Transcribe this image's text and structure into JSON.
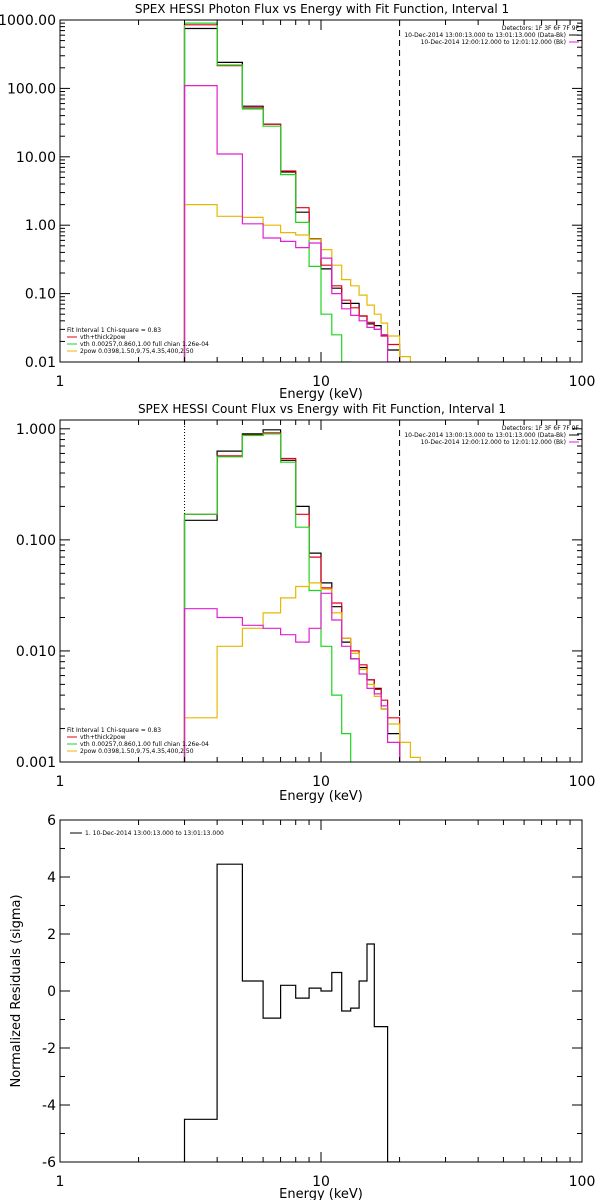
{
  "colors": {
    "background": "#ffffff",
    "axes": "#000000",
    "data": "#000000",
    "vth_thick2pow": "#e0001b",
    "vth": "#1ed41e",
    "2pow": "#e6b800",
    "background_model": "#e020d0",
    "energy_marker": "#000000",
    "low_marker": "#e07800"
  },
  "chart_data": [
    {
      "type": "line",
      "title": "SPEX HESSI Photon Flux vs Energy with Fit Function, Interval 1",
      "xlabel": "Energy (keV)",
      "ylabel": "",
      "x_scale": "log",
      "y_scale": "log",
      "xlim": [
        1,
        100
      ],
      "ylim": [
        0.01,
        1000
      ],
      "x_ticks": [
        1,
        10,
        100
      ],
      "x_tick_labels": [
        "1",
        "10",
        "100"
      ],
      "y_ticks": [
        0.01,
        0.1,
        1,
        10,
        100,
        1000
      ],
      "y_tick_labels": [
        "0.01",
        "0.10",
        "1.00",
        "10.00",
        "100.00",
        "1000.00"
      ],
      "vlines": [
        {
          "x": 3.0,
          "style": "dotted",
          "color": "#e07800"
        },
        {
          "x": 20.0,
          "style": "dashed",
          "color": "#000000"
        }
      ],
      "legend_top_right": {
        "detectors": "Detectors: 1F 3F 6F 7F 9F",
        "entries": [
          {
            "label": "10-Dec-2014 13:00:13.000 to 13:01:13.000 (Data-Bk)",
            "color": "#000000"
          },
          {
            "label": "10-Dec-2014 12:00:12.000 to 12:01:12.000 (Bk)",
            "color": "#e020d0"
          }
        ]
      },
      "legend_bottom_left": {
        "header": "Fit Interval 1   Chi-square = 0.83",
        "entries": [
          {
            "label": "vth+thick2pow",
            "color": "#e0001b"
          },
          {
            "label": "vth 0.00257,0.860,1.00  full chian 1.26e-04",
            "color": "#1ed41e"
          },
          {
            "label": "2pow 0.0398,1.50,9.75,4.35,400,2.50",
            "color": "#e6b800"
          }
        ]
      },
      "series": [
        {
          "key": "data",
          "color": "#000000",
          "edges": [
            3,
            4,
            5,
            6,
            7,
            8,
            9,
            10,
            11,
            12,
            13,
            14,
            15,
            16,
            17,
            18,
            20
          ],
          "values": [
            750,
            240,
            55,
            30,
            6.0,
            1.55,
            0.63,
            0.23,
            0.12,
            0.072,
            0.072,
            0.047,
            0.036,
            0.034,
            0.025,
            0.015
          ]
        },
        {
          "key": "model_total",
          "color": "#e0001b",
          "edges": [
            3,
            4,
            5,
            6,
            7,
            8,
            9,
            10,
            11,
            12,
            13,
            14,
            15,
            16,
            17,
            18,
            20
          ],
          "values": [
            850,
            215,
            52,
            30,
            6.2,
            1.8,
            0.62,
            0.26,
            0.13,
            0.08,
            0.062,
            0.047,
            0.038,
            0.03,
            0.024,
            0.018
          ]
        },
        {
          "key": "vth",
          "color": "#1ed41e",
          "edges": [
            3,
            4,
            5,
            6,
            7,
            8,
            9,
            10,
            11,
            12,
            13
          ],
          "values": [
            900,
            220,
            50,
            28,
            5.5,
            1.1,
            0.25,
            0.05,
            0.025,
            0.01
          ]
        },
        {
          "key": "2pow",
          "color": "#e6b800",
          "edges": [
            3,
            4,
            5,
            6,
            7,
            8,
            9,
            10,
            11,
            12,
            13,
            14,
            15,
            16,
            17,
            18,
            20,
            22
          ],
          "values": [
            2.0,
            1.35,
            1.3,
            1.0,
            0.78,
            0.72,
            0.62,
            0.44,
            0.26,
            0.16,
            0.13,
            0.095,
            0.068,
            0.05,
            0.037,
            0.024,
            0.012
          ]
        },
        {
          "key": "background",
          "color": "#e020d0",
          "edges": [
            3,
            4,
            5,
            6,
            7,
            8,
            9,
            10,
            11,
            12,
            13,
            14,
            15,
            16,
            17,
            18,
            20
          ],
          "values": [
            110,
            11,
            1.05,
            0.65,
            0.58,
            0.47,
            0.55,
            0.33,
            0.1,
            0.06,
            0.048,
            0.04,
            0.032,
            0.03,
            0.025,
            0.01
          ]
        }
      ]
    },
    {
      "type": "line",
      "title": "SPEX HESSI Count Flux vs Energy with Fit Function, Interval 1",
      "xlabel": "Energy (keV)",
      "ylabel": "",
      "x_scale": "log",
      "y_scale": "log",
      "xlim": [
        1,
        100
      ],
      "ylim": [
        0.001,
        1.2
      ],
      "x_ticks": [
        1,
        10,
        100
      ],
      "x_tick_labels": [
        "1",
        "10",
        "100"
      ],
      "y_ticks": [
        0.001,
        0.01,
        0.1,
        1
      ],
      "y_tick_labels": [
        "0.001",
        "0.010",
        "0.100",
        "1.000"
      ],
      "vlines": [
        {
          "x": 3.0,
          "style": "dotted",
          "color": "#000000"
        },
        {
          "x": 20.0,
          "style": "dashed",
          "color": "#000000"
        }
      ],
      "legend_top_right": {
        "detectors": "Detectors: 1F 3F 6F 7F 9F",
        "entries": [
          {
            "label": "10-Dec-2014 13:00:13.000 to 13:01:13.000 (Data-Bk)",
            "color": "#000000"
          },
          {
            "label": "10-Dec-2014 12:00:12.000 to 12:01:12.000 (Bk)",
            "color": "#e020d0"
          }
        ]
      },
      "legend_bottom_left": {
        "header": "Fit Interval 1   Chi-square = 0.83",
        "entries": [
          {
            "label": "vth+thick2pow",
            "color": "#e0001b"
          },
          {
            "label": "vth 0.00257,0.860,1.00  full chian 1.26e-04",
            "color": "#1ed41e"
          },
          {
            "label": "2pow 0.0398,1.50,9.75,4.35,400,2.50",
            "color": "#e6b800"
          }
        ]
      },
      "series": [
        {
          "key": "data",
          "color": "#000000",
          "edges": [
            3,
            4,
            5,
            6,
            7,
            8,
            9,
            10,
            11,
            12,
            13,
            14,
            15,
            16,
            17,
            18,
            20
          ],
          "values": [
            0.15,
            0.63,
            0.9,
            0.98,
            0.52,
            0.2,
            0.076,
            0.041,
            0.025,
            0.012,
            0.0085,
            0.0071,
            0.0055,
            0.0046,
            0.003,
            0.0018
          ]
        },
        {
          "key": "model_total",
          "color": "#e0001b",
          "edges": [
            3,
            4,
            5,
            6,
            7,
            8,
            9,
            10,
            11,
            12,
            13,
            14,
            15,
            16,
            17,
            18,
            20
          ],
          "values": [
            0.17,
            0.57,
            0.88,
            0.92,
            0.54,
            0.17,
            0.07,
            0.037,
            0.027,
            0.013,
            0.01,
            0.0075,
            0.0055,
            0.0045,
            0.0036,
            0.0025
          ]
        },
        {
          "key": "vth",
          "color": "#1ed41e",
          "edges": [
            3,
            4,
            5,
            6,
            7,
            8,
            9,
            10,
            11,
            12,
            13
          ],
          "values": [
            0.17,
            0.56,
            0.87,
            0.9,
            0.5,
            0.13,
            0.035,
            0.011,
            0.004,
            0.0018,
            0.001
          ]
        },
        {
          "key": "2pow",
          "color": "#e6b800",
          "edges": [
            3,
            4,
            5,
            6,
            7,
            8,
            9,
            10,
            11,
            12,
            13,
            14,
            15,
            16,
            17,
            18,
            20,
            22,
            24
          ],
          "values": [
            0.0025,
            0.011,
            0.016,
            0.022,
            0.03,
            0.038,
            0.041,
            0.036,
            0.022,
            0.013,
            0.0095,
            0.0068,
            0.005,
            0.0039,
            0.003,
            0.0022,
            0.0015,
            0.0011
          ]
        },
        {
          "key": "background",
          "color": "#e020d0",
          "edges": [
            3,
            4,
            5,
            6,
            7,
            8,
            9,
            10,
            11,
            12,
            13,
            14,
            15,
            16,
            17,
            18,
            20
          ],
          "values": [
            0.024,
            0.02,
            0.017,
            0.016,
            0.014,
            0.012,
            0.016,
            0.033,
            0.019,
            0.011,
            0.0085,
            0.0062,
            0.0046,
            0.0041,
            0.0032,
            0.0015
          ]
        }
      ]
    },
    {
      "type": "line",
      "title": "",
      "xlabel": "Energy (keV)",
      "ylabel": "Normalized Residuals (sigma)",
      "x_scale": "log",
      "y_scale": "linear",
      "xlim": [
        1,
        100
      ],
      "ylim": [
        -6,
        6
      ],
      "x_ticks": [
        1,
        10,
        100
      ],
      "x_tick_labels": [
        "1",
        "10",
        "100"
      ],
      "y_ticks": [
        -6,
        -4,
        -2,
        0,
        2,
        4,
        6
      ],
      "y_tick_labels": [
        "-6",
        "-4",
        "-2",
        "0",
        "2",
        "4",
        "6"
      ],
      "legend_top_left": {
        "entries": [
          {
            "label": "1. 10-Dec-2014 13:00:13.000 to 13:01:13.000",
            "color": "#000000"
          }
        ]
      },
      "series": [
        {
          "key": "residuals",
          "color": "#000000",
          "edges": [
            3,
            4,
            5,
            6,
            7,
            8,
            9,
            10,
            11,
            12,
            13,
            14,
            15,
            16,
            17,
            18,
            20
          ],
          "values": [
            -4.5,
            4.45,
            0.35,
            -0.95,
            0.2,
            -0.25,
            0.1,
            0.0,
            0.65,
            -0.7,
            -0.6,
            0.35,
            1.65,
            -1.25,
            -1.25,
            -6.0
          ]
        }
      ]
    }
  ]
}
